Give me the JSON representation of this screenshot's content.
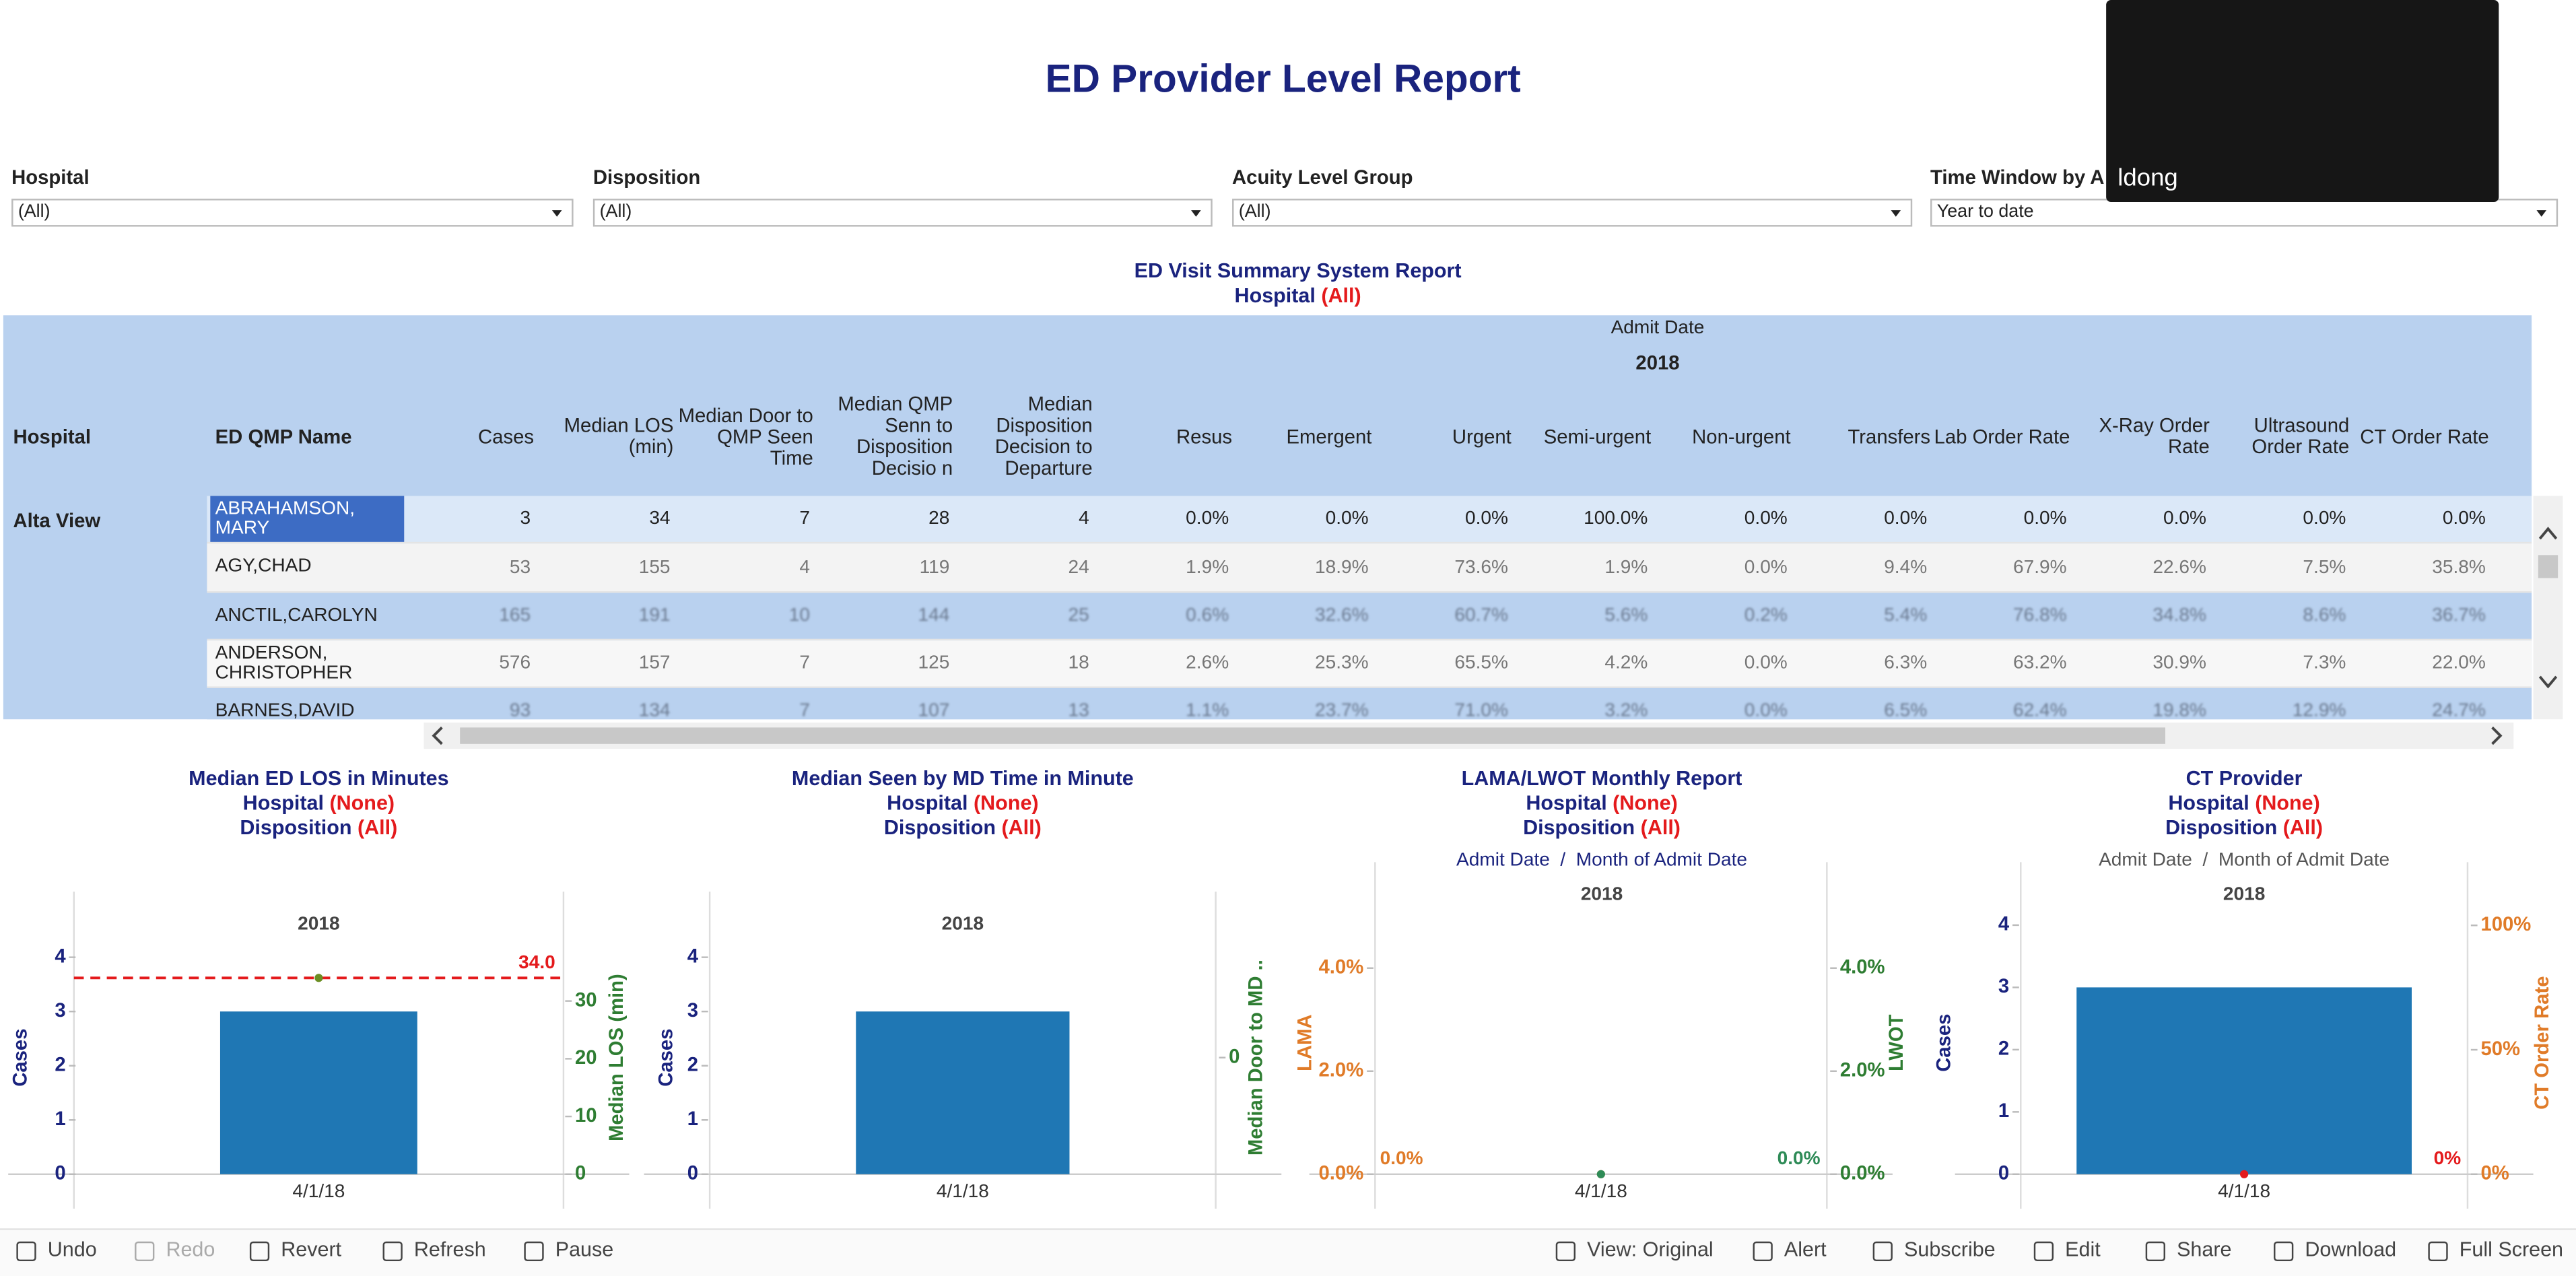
{
  "title": "ED Provider Level Report",
  "filters": [
    {
      "label": "Hospital",
      "value": "(All)"
    },
    {
      "label": "Disposition",
      "value": "(All)"
    },
    {
      "label": "Acuity Level Group",
      "value": "(All)"
    },
    {
      "label": "Time Window by A",
      "value": "Year to date"
    }
  ],
  "video_overlay_name": "ldong",
  "table": {
    "title": "ED Visit Summary System Report",
    "filter_label": "Hospital",
    "filter_value": "(All)",
    "group_header": "Admit Date",
    "year": "2018",
    "columns": [
      "Hospital",
      "ED QMP Name",
      "Cases",
      "Median LOS (min)",
      "Median Door to QMP Seen Time",
      "Median QMP Senn to Disposition Decisio n",
      "Median Disposition Decision to Departure",
      "Resus",
      "Emergent",
      "Urgent",
      "Semi-urgent",
      "Non-urgent",
      "Transfers",
      "Lab Order Rate",
      "X-Ray Order Rate",
      "Ultrasound Order Rate",
      "CT Order Rate"
    ],
    "hospital": "Alta View",
    "rows": [
      {
        "name": "ABRAHAMSON, MARY",
        "values": [
          "3",
          "34",
          "7",
          "28",
          "4",
          "0.0%",
          "0.0%",
          "0.0%",
          "100.0%",
          "0.0%",
          "0.0%",
          "0.0%",
          "0.0%",
          "0.0%",
          "0.0%"
        ]
      },
      {
        "name": "AGY,CHAD",
        "values": [
          "53",
          "155",
          "4",
          "119",
          "24",
          "1.9%",
          "18.9%",
          "73.6%",
          "1.9%",
          "0.0%",
          "9.4%",
          "67.9%",
          "22.6%",
          "7.5%",
          "35.8%"
        ]
      },
      {
        "name": "ANCTIL,CAROLYN",
        "values": [
          "165",
          "191",
          "10",
          "144",
          "25",
          "0.6%",
          "32.6%",
          "60.7%",
          "5.6%",
          "0.2%",
          "5.4%",
          "76.8%",
          "34.8%",
          "8.6%",
          "36.7%"
        ]
      },
      {
        "name": "ANDERSON, CHRISTOPHER",
        "values": [
          "576",
          "157",
          "7",
          "125",
          "18",
          "2.6%",
          "25.3%",
          "65.5%",
          "4.2%",
          "0.0%",
          "6.3%",
          "63.2%",
          "30.9%",
          "7.3%",
          "22.0%"
        ]
      },
      {
        "name": "BARNES,DAVID",
        "values": [
          "93",
          "134",
          "7",
          "107",
          "13",
          "1.1%",
          "23.7%",
          "71.0%",
          "3.2%",
          "0.0%",
          "6.5%",
          "62.4%",
          "19.8%",
          "12.9%",
          "24.7%"
        ]
      }
    ]
  },
  "charts": [
    {
      "type": "combo",
      "title": "Median ED LOS in Minutes",
      "filter_lines": [
        {
          "label": "Hospital",
          "value": "(None)"
        },
        {
          "label": "Disposition",
          "value": "(All)"
        }
      ],
      "year": "2018",
      "categories": [
        "4/1/18"
      ],
      "ylabel": "Cases",
      "ylim": [
        0,
        4.3
      ],
      "yticks": [
        0,
        1,
        2,
        3,
        4
      ],
      "y2label": "Median LOS (min)",
      "y2lim": [
        0,
        40.4
      ],
      "y2ticks": [
        0,
        10,
        20,
        30
      ],
      "series": [
        {
          "type": "bar",
          "color": "#1f77b4",
          "values": [
            3
          ]
        },
        {
          "type": "reference_line",
          "axis": "y2",
          "color": "#e41a1c",
          "values": [
            34
          ],
          "value_labels": [
            "34.0"
          ]
        }
      ]
    },
    {
      "type": "combo",
      "title": "Median Seen by MD Time in Minute",
      "filter_lines": [
        {
          "label": "Hospital",
          "value": "(None)"
        },
        {
          "label": "Disposition",
          "value": "(All)"
        }
      ],
      "year": "2018",
      "categories": [
        "4/1/18"
      ],
      "ylabel": "Cases",
      "ylim": [
        0,
        4.3
      ],
      "yticks": [
        0,
        1,
        2,
        3,
        4
      ],
      "y2label": "Median Door to MD ..",
      "y2lim": [
        -1,
        1
      ],
      "y2ticks": [
        0
      ],
      "series": [
        {
          "type": "bar",
          "color": "#1f77b4",
          "values": [
            3
          ]
        }
      ]
    },
    {
      "type": "combo",
      "title": "LAMA/LWOT Monthly Report",
      "filter_lines": [
        {
          "label": "Hospital",
          "value": "(None)"
        },
        {
          "label": "Disposition",
          "value": "(All)"
        }
      ],
      "subheader": "Admit Date  /  Month of Admit Date",
      "year": "2018",
      "categories": [
        "4/1/18"
      ],
      "ylabel": "LAMA",
      "ylim": [
        0,
        5.1
      ],
      "yticks": [
        {
          "value": 0,
          "label": "0.0%"
        },
        {
          "value": 2,
          "label": "2.0%"
        },
        {
          "value": 4,
          "label": "4.0%"
        }
      ],
      "y2label": "LWOT",
      "y2lim": [
        0,
        5.1
      ],
      "y2ticks": [
        {
          "value": 0,
          "label": "0.0%"
        },
        {
          "value": 2,
          "label": "2.0%"
        },
        {
          "value": 4,
          "label": "4.0%"
        }
      ],
      "series": [
        {
          "type": "line",
          "color": "#e07b28",
          "values": [
            0
          ],
          "value_labels": [
            "0.0%"
          ]
        },
        {
          "type": "line",
          "axis": "y2",
          "color": "#2e8b57",
          "values": [
            0
          ],
          "value_labels": [
            "0.0%"
          ]
        }
      ]
    },
    {
      "type": "combo",
      "title": "CT Provider",
      "filter_lines": [
        {
          "label": "Hospital",
          "value": "(None)"
        },
        {
          "label": "Disposition",
          "value": "(All)"
        }
      ],
      "subheader": "Admit Date  /  Month of Admit Date",
      "year": "2018",
      "categories": [
        "4/1/18"
      ],
      "ylabel": "Cases",
      "ylim": [
        0,
        4.22
      ],
      "yticks": [
        0,
        1,
        2,
        3,
        4
      ],
      "y2label": "CT Order Rate",
      "y2lim": [
        0,
        105.6
      ],
      "y2ticks": [
        {
          "value": 0,
          "label": "0%"
        },
        {
          "value": 50,
          "label": "50%"
        },
        {
          "value": 100,
          "label": "100%"
        }
      ],
      "series": [
        {
          "type": "bar",
          "color": "#1f77b4",
          "values": [
            3
          ]
        },
        {
          "type": "line",
          "axis": "y2",
          "color": "#e41a1c",
          "values": [
            0
          ],
          "value_labels": [
            "0%"
          ]
        }
      ]
    }
  ],
  "toolbar": [
    "Undo",
    "Redo",
    "Revert",
    "Refresh",
    "Pause",
    "View: Original",
    "Alert",
    "Subscribe",
    "Edit",
    "Share",
    "Download",
    "Full Screen"
  ]
}
